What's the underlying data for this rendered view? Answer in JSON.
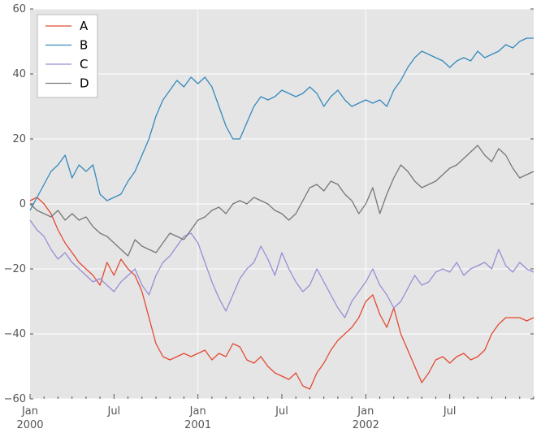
{
  "chart_data": {
    "type": "line",
    "title": "",
    "xlabel": "",
    "ylabel": "",
    "ylim": [
      -60,
      60
    ],
    "yticks": [
      "60",
      "40",
      "20",
      "0",
      "−20",
      "−40",
      "−60"
    ],
    "ytick_values": [
      60,
      40,
      20,
      0,
      -20,
      -40,
      -60
    ],
    "xlim": [
      0,
      36
    ],
    "xticks": [
      {
        "pos": 0,
        "line1": "Jan",
        "line2": "2000",
        "major": true
      },
      {
        "pos": 6,
        "line1": "Jul",
        "line2": "",
        "major": false
      },
      {
        "pos": 12,
        "line1": "Jan",
        "line2": "2001",
        "major": true
      },
      {
        "pos": 18,
        "line1": "Jul",
        "line2": "",
        "major": false
      },
      {
        "pos": 24,
        "line1": "Jan",
        "line2": "2002",
        "major": true
      },
      {
        "pos": 30,
        "line1": "Jul",
        "line2": "",
        "major": false
      }
    ],
    "grid": true,
    "legend_position": "top-left",
    "series": [
      {
        "name": "A",
        "color": "#e24a33",
        "x": [
          0,
          0.5,
          1,
          1.5,
          2,
          2.5,
          3,
          3.5,
          4,
          4.5,
          5,
          5.5,
          6,
          6.5,
          7,
          7.5,
          8,
          8.5,
          9,
          9.5,
          10,
          10.5,
          11,
          11.5,
          12,
          12.5,
          13,
          13.5,
          14,
          14.5,
          15,
          15.5,
          16,
          16.5,
          17,
          17.5,
          18,
          18.5,
          19,
          19.5,
          20,
          20.5,
          21,
          21.5,
          22,
          22.5,
          23,
          23.5,
          24,
          24.5,
          25,
          25.5,
          26,
          26.5,
          27,
          27.5,
          28,
          28.5,
          29,
          29.5,
          30,
          30.5,
          31,
          31.5,
          32,
          32.5,
          33,
          33.5,
          34,
          34.5,
          35,
          35.5,
          36
        ],
        "values": [
          1,
          2,
          0,
          -3,
          -8,
          -12,
          -15,
          -18,
          -20,
          -22,
          -25,
          -18,
          -22,
          -17,
          -20,
          -22,
          -27,
          -35,
          -43,
          -47,
          -48,
          -47,
          -46,
          -47,
          -46,
          -45,
          -48,
          -46,
          -47,
          -43,
          -44,
          -48,
          -49,
          -47,
          -50,
          -52,
          -53,
          -54,
          -52,
          -56,
          -57,
          -52,
          -49,
          -45,
          -42,
          -40,
          -38,
          -35,
          -30,
          -28,
          -34,
          -38,
          -32,
          -40,
          -45,
          -50,
          -55,
          -52,
          -48,
          -47,
          -49,
          -47,
          -46,
          -48,
          -47,
          -45,
          -40,
          -37,
          -35,
          -35,
          -35,
          -36,
          -35
        ]
      },
      {
        "name": "B",
        "color": "#348abd",
        "x": [
          0,
          0.5,
          1,
          1.5,
          2,
          2.5,
          3,
          3.5,
          4,
          4.5,
          5,
          5.5,
          6,
          6.5,
          7,
          7.5,
          8,
          8.5,
          9,
          9.5,
          10,
          10.5,
          11,
          11.5,
          12,
          12.5,
          13,
          13.5,
          14,
          14.5,
          15,
          15.5,
          16,
          16.5,
          17,
          17.5,
          18,
          18.5,
          19,
          19.5,
          20,
          20.5,
          21,
          21.5,
          22,
          22.5,
          23,
          23.5,
          24,
          24.5,
          25,
          25.5,
          26,
          26.5,
          27,
          27.5,
          28,
          28.5,
          29,
          29.5,
          30,
          30.5,
          31,
          31.5,
          32,
          32.5,
          33,
          33.5,
          34,
          34.5,
          35,
          35.5,
          36
        ],
        "values": [
          -2,
          2,
          6,
          10,
          12,
          15,
          8,
          12,
          10,
          12,
          3,
          1,
          2,
          3,
          7,
          10,
          15,
          20,
          27,
          32,
          35,
          38,
          36,
          39,
          37,
          39,
          36,
          30,
          24,
          20,
          20,
          25,
          30,
          33,
          32,
          33,
          35,
          34,
          33,
          34,
          36,
          34,
          30,
          33,
          35,
          32,
          30,
          31,
          32,
          31,
          32,
          30,
          35,
          38,
          42,
          45,
          47,
          46,
          45,
          44,
          42,
          44,
          45,
          44,
          47,
          45,
          46,
          47,
          49,
          48,
          50,
          51,
          51
        ]
      },
      {
        "name": "C",
        "color": "#988ed5",
        "x": [
          0,
          0.5,
          1,
          1.5,
          2,
          2.5,
          3,
          3.5,
          4,
          4.5,
          5,
          5.5,
          6,
          6.5,
          7,
          7.5,
          8,
          8.5,
          9,
          9.5,
          10,
          10.5,
          11,
          11.5,
          12,
          12.5,
          13,
          13.5,
          14,
          14.5,
          15,
          15.5,
          16,
          16.5,
          17,
          17.5,
          18,
          18.5,
          19,
          19.5,
          20,
          20.5,
          21,
          21.5,
          22,
          22.5,
          23,
          23.5,
          24,
          24.5,
          25,
          25.5,
          26,
          26.5,
          27,
          27.5,
          28,
          28.5,
          29,
          29.5,
          30,
          30.5,
          31,
          31.5,
          32,
          32.5,
          33,
          33.5,
          34,
          34.5,
          35,
          35.5,
          36
        ],
        "values": [
          -5,
          -8,
          -10,
          -14,
          -17,
          -15,
          -18,
          -20,
          -22,
          -24,
          -23,
          -25,
          -27,
          -24,
          -22,
          -20,
          -25,
          -28,
          -22,
          -18,
          -16,
          -13,
          -10,
          -9,
          -12,
          -18,
          -24,
          -29,
          -33,
          -28,
          -23,
          -20,
          -18,
          -13,
          -17,
          -22,
          -15,
          -20,
          -24,
          -27,
          -25,
          -20,
          -24,
          -28,
          -32,
          -35,
          -30,
          -27,
          -24,
          -20,
          -25,
          -28,
          -32,
          -30,
          -26,
          -22,
          -25,
          -24,
          -21,
          -20,
          -21,
          -18,
          -22,
          -20,
          -19,
          -18,
          -20,
          -14,
          -19,
          -21,
          -18,
          -20,
          -21
        ]
      },
      {
        "name": "D",
        "color": "#777777",
        "x": [
          0,
          0.5,
          1,
          1.5,
          2,
          2.5,
          3,
          3.5,
          4,
          4.5,
          5,
          5.5,
          6,
          6.5,
          7,
          7.5,
          8,
          8.5,
          9,
          9.5,
          10,
          10.5,
          11,
          11.5,
          12,
          12.5,
          13,
          13.5,
          14,
          14.5,
          15,
          15.5,
          16,
          16.5,
          17,
          17.5,
          18,
          18.5,
          19,
          19.5,
          20,
          20.5,
          21,
          21.5,
          22,
          22.5,
          23,
          23.5,
          24,
          24.5,
          25,
          25.5,
          26,
          26.5,
          27,
          27.5,
          28,
          28.5,
          29,
          29.5,
          30,
          30.5,
          31,
          31.5,
          32,
          32.5,
          33,
          33.5,
          34,
          34.5,
          35,
          35.5,
          36
        ],
        "values": [
          0,
          -2,
          -3,
          -4,
          -2,
          -5,
          -3,
          -5,
          -4,
          -7,
          -9,
          -10,
          -12,
          -14,
          -16,
          -11,
          -13,
          -14,
          -15,
          -12,
          -9,
          -10,
          -11,
          -8,
          -5,
          -4,
          -2,
          -1,
          -3,
          0,
          1,
          0,
          2,
          1,
          0,
          -2,
          -3,
          -5,
          -3,
          1,
          5,
          6,
          4,
          7,
          6,
          3,
          1,
          -3,
          0,
          5,
          -3,
          3,
          8,
          12,
          10,
          7,
          5,
          6,
          7,
          9,
          11,
          12,
          14,
          16,
          18,
          15,
          13,
          17,
          15,
          11,
          8,
          9,
          10
        ]
      }
    ]
  }
}
